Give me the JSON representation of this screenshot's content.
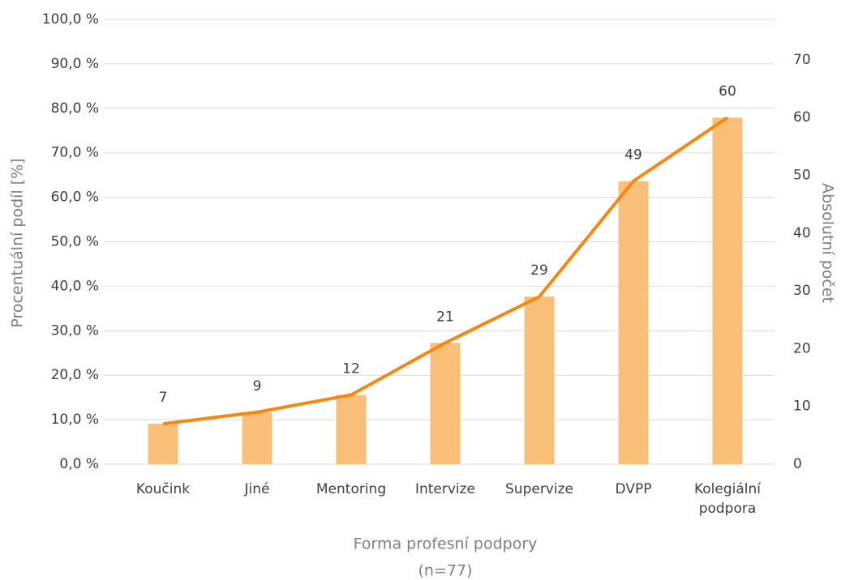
{
  "chart_data": {
    "type": "bar_line",
    "categories": [
      "Koučink",
      "Jiné",
      "Mentoring",
      "Intervize",
      "Supervize",
      "DVPP",
      "Kolegiální podpora"
    ],
    "series": [
      {
        "type": "bar",
        "color": "#f9bf78",
        "values": [
          9.09,
          11.69,
          15.58,
          27.27,
          37.66,
          63.64,
          77.92
        ]
      },
      {
        "type": "line",
        "axis": "y2",
        "color": "#f7870f",
        "values": [
          7,
          9,
          12,
          21,
          29,
          49,
          60
        ]
      }
    ],
    "ylabel": "Procentuální podíl [%]",
    "y2label": "Absolutní počet",
    "xlabel": [
      "Forma profesní podpory",
      "(n=77)"
    ],
    "ylim": [
      0,
      100
    ],
    "yticks": [
      {
        "value": 0,
        "label": "0,0 %"
      },
      {
        "value": 10,
        "label": "10,0 %"
      },
      {
        "value": 20,
        "label": "20,0 %"
      },
      {
        "value": 30,
        "label": "30,0 %"
      },
      {
        "value": 40,
        "label": "40,0 %"
      },
      {
        "value": 50,
        "label": "50,0 %"
      },
      {
        "value": 60,
        "label": "60,0 %"
      },
      {
        "value": 70,
        "label": "70,0 %"
      },
      {
        "value": 80,
        "label": "80,0 %"
      },
      {
        "value": 90,
        "label": "90,0 %"
      },
      {
        "value": 100,
        "label": "100,0 %"
      }
    ],
    "y2lim": [
      0,
      77
    ],
    "y2ticks": [
      0,
      10,
      20,
      30,
      40,
      50,
      60,
      70
    ],
    "grid": true
  }
}
